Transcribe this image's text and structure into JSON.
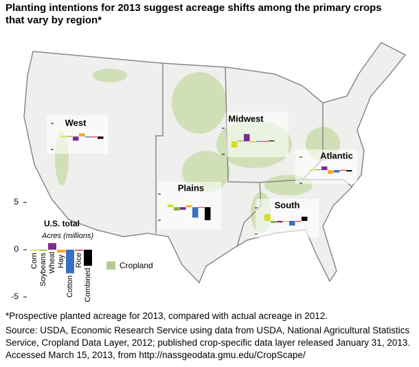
{
  "title": "Planting intentions for 2013 suggest acreage shifts among the primary crops that vary by region*",
  "legend": "Cropland",
  "footnote": "*Prospective planted acreage for 2013, compared with actual acreage in 2012.",
  "source": "Source: USDA, Economic Research Service using data from USDA, National Agricultural Statistics Service, Cropland Data Layer, 2012; published crop-specific data layer released January 31, 2013. Accessed March 15, 2013, from http://nassgeodata.gmu.edu/CropScape/",
  "chart_data": [
    {
      "type": "bar",
      "title": "U.S. total",
      "subtitle": "Acres (millions)",
      "categories": [
        "Corn",
        "Soybeans",
        "Wheat",
        "Hay",
        "Cotton",
        "Rice",
        "Combined"
      ],
      "colors": [
        "#d4df1f",
        "#7cb342",
        "#7b2d8e",
        "#f6a623",
        "#3a6fc4",
        "#e53935",
        "#000000"
      ],
      "values": [
        -0.1,
        -0.1,
        0.7,
        -0.3,
        -2.5,
        -0.1,
        -1.7
      ],
      "ylim": [
        -5,
        5
      ],
      "yticks": [
        -5,
        0,
        5
      ]
    },
    {
      "type": "bar",
      "title": "West",
      "values": [
        0.1,
        0.2,
        -1.6,
        1.2,
        -0.3,
        -0.1,
        -0.9
      ],
      "ylim": [
        -5,
        5
      ]
    },
    {
      "type": "bar",
      "title": "Midwest",
      "values": [
        -2.4,
        0.3,
        2.8,
        -0.2,
        0.1,
        0.1,
        0.3
      ],
      "ylim": [
        -5,
        5
      ]
    },
    {
      "type": "bar",
      "title": "Atlantic",
      "values": [
        0.2,
        0.3,
        1.4,
        -1.4,
        -0.9,
        0.1,
        -0.5
      ],
      "ylim": [
        -5,
        5
      ]
    },
    {
      "type": "bar",
      "title": "Plains",
      "values": [
        1.0,
        -1.3,
        -1.0,
        0.7,
        -4.0,
        0.1,
        -5.0
      ],
      "ylim": [
        -5,
        5
      ]
    },
    {
      "type": "bar",
      "title": "South",
      "values": [
        2.6,
        -0.8,
        -0.6,
        -0.3,
        -1.8,
        -0.3,
        1.6
      ],
      "ylim": [
        -5,
        5
      ]
    }
  ]
}
